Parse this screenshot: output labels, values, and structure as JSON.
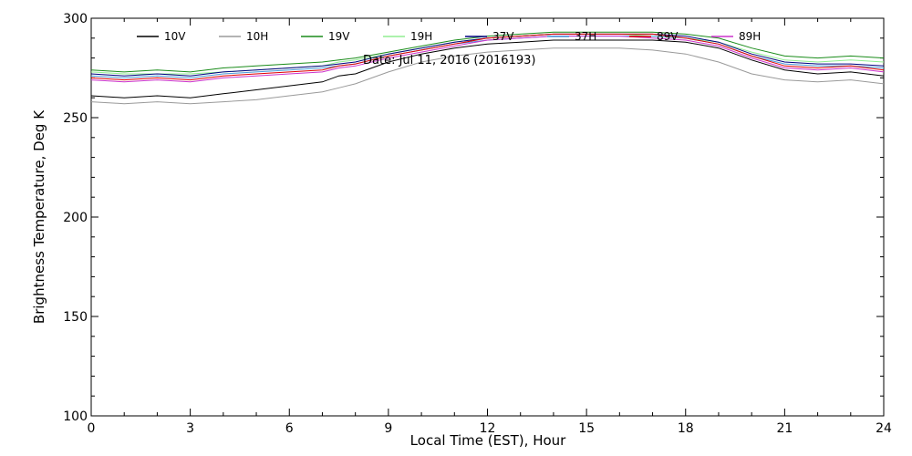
{
  "chart_data": {
    "type": "line",
    "date_label": "Date: Jul 11, 2016 (2016193)",
    "xlabel": "Local Time (EST), Hour",
    "ylabel": "Brightness Temperature, Deg K",
    "xlim": [
      0,
      24
    ],
    "ylim": [
      100,
      300
    ],
    "x_ticks": [
      "0",
      "3",
      "6",
      "9",
      "12",
      "15",
      "18",
      "21",
      "24"
    ],
    "y_ticks": [
      "100",
      "150",
      "200",
      "250",
      "300"
    ],
    "grid": false,
    "legend_position": "top-inside",
    "x": [
      0,
      1,
      2,
      3,
      4,
      5,
      6,
      7,
      7.5,
      8,
      9,
      10,
      11,
      12,
      13,
      14,
      15,
      16,
      17,
      18,
      19,
      20,
      21,
      22,
      23,
      24
    ],
    "series": [
      {
        "name": "10V",
        "color": "#000000",
        "values": [
          261,
          260,
          261,
          260,
          262,
          264,
          266,
          268,
          271,
          272,
          278,
          282,
          285,
          287,
          288,
          289,
          289,
          289,
          289,
          288,
          285,
          279,
          274,
          272,
          273,
          271
        ]
      },
      {
        "name": "10H",
        "color": "#9a9a9a",
        "values": [
          258,
          257,
          258,
          257,
          258,
          259,
          261,
          263,
          265,
          267,
          273,
          278,
          281,
          283,
          284,
          285,
          285,
          285,
          284,
          282,
          278,
          272,
          269,
          268,
          269,
          267
        ]
      },
      {
        "name": "19V",
        "color": "#1a8c1a",
        "values": [
          274,
          273,
          274,
          273,
          275,
          276,
          277,
          278,
          279,
          280,
          283,
          286,
          289,
          291,
          292,
          293,
          293,
          293,
          293,
          292,
          290,
          285,
          281,
          280,
          281,
          280
        ]
      },
      {
        "name": "19H",
        "color": "#90ee90",
        "values": [
          273,
          272,
          272,
          272,
          273,
          274,
          275,
          276,
          278,
          279,
          282,
          285,
          288,
          290,
          291,
          292,
          292,
          292,
          291,
          290,
          288,
          283,
          279,
          278,
          279,
          278
        ]
      },
      {
        "name": "37V",
        "color": "#000080",
        "values": [
          272,
          271,
          272,
          271,
          273,
          274,
          275,
          276,
          277,
          278,
          282,
          285,
          288,
          290,
          291,
          292,
          292,
          292,
          292,
          291,
          288,
          282,
          278,
          277,
          277,
          276
        ]
      },
      {
        "name": "37H",
        "color": "#4a9ad9",
        "values": [
          271,
          270,
          271,
          270,
          272,
          273,
          274,
          275,
          276,
          277,
          281,
          284,
          287,
          289,
          290,
          291,
          291,
          291,
          291,
          290,
          287,
          281,
          277,
          276,
          276,
          275
        ]
      },
      {
        "name": "89V",
        "color": "#e00000",
        "values": [
          270,
          269,
          270,
          269,
          271,
          272,
          273,
          274,
          276,
          277,
          281,
          284,
          287,
          290,
          291,
          292,
          292,
          292,
          292,
          290,
          287,
          281,
          276,
          275,
          276,
          274
        ]
      },
      {
        "name": "89H",
        "color": "#cc33cc",
        "values": [
          269,
          268,
          269,
          268,
          270,
          271,
          272,
          273,
          275,
          276,
          280,
          283,
          286,
          289,
          290,
          291,
          291,
          291,
          290,
          289,
          286,
          280,
          275,
          274,
          275,
          273
        ]
      }
    ]
  }
}
